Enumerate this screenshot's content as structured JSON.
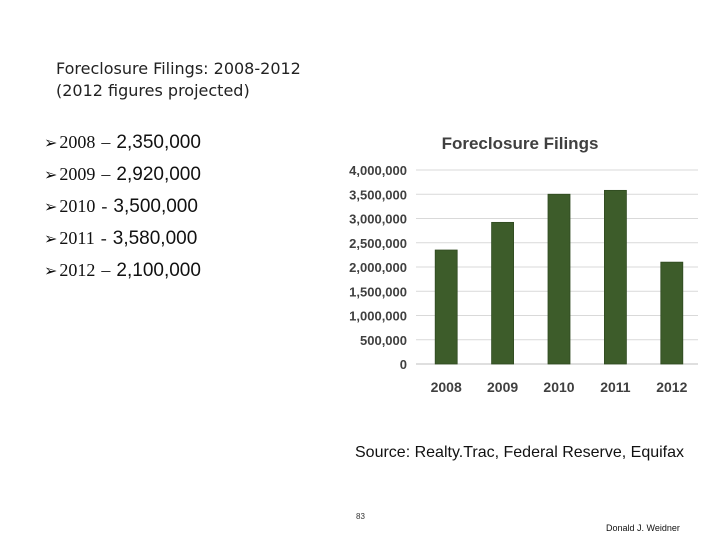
{
  "slide": {
    "title_line1": "Foreclosure Filings: 2008-2012",
    "title_line2": "(2012 figures projected)",
    "bullets": [
      {
        "year": "2008",
        "sep": "–",
        "value": "2,350,000"
      },
      {
        "year": "2009",
        "sep": "–",
        "value": "2,920,000"
      },
      {
        "year": "2010",
        "sep": "-",
        "value": "3,500,000"
      },
      {
        "year": "2011",
        "sep": "-",
        "value": "3,580,000"
      },
      {
        "year": "2012",
        "sep": "–",
        "value": "2,100,000"
      }
    ],
    "source": "Source: Realty.Trac, Federal Reserve, Equifax",
    "page_number": "83",
    "author": "Donald J. Weidner"
  },
  "chart_data": {
    "type": "bar",
    "title": "Foreclosure Filings",
    "categories": [
      "2008",
      "2009",
      "2010",
      "2011",
      "2012"
    ],
    "values": [
      2350000,
      2920000,
      3500000,
      3580000,
      2100000
    ],
    "ylim": [
      0,
      4000000
    ],
    "yticks": [
      0,
      500000,
      1000000,
      1500000,
      2000000,
      2500000,
      3000000,
      3500000,
      4000000
    ],
    "ytick_labels": [
      "0",
      "500,000",
      "1,000,000",
      "1,500,000",
      "2,000,000",
      "2,500,000",
      "3,000,000",
      "3,500,000",
      "4,000,000"
    ],
    "xlabel": "",
    "ylabel": "",
    "grid": true,
    "legend": "none",
    "bar_color": "#3d5c2a",
    "grid_color": "#d9d9d9"
  }
}
